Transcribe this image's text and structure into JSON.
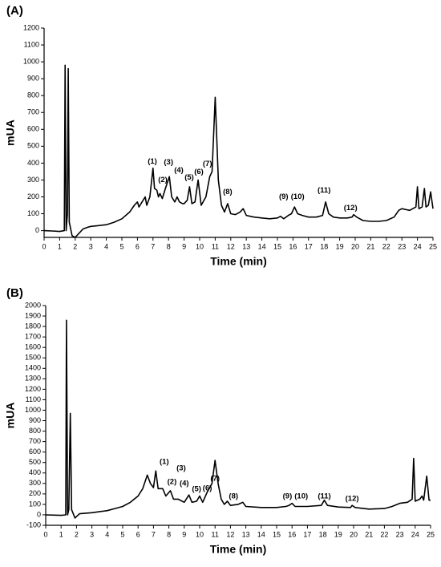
{
  "chart_data": [
    {
      "type": "line",
      "title": "(A)",
      "x_label": "Time (min)",
      "y_label": "mUA",
      "color": "#000000",
      "xlim": [
        0,
        25
      ],
      "xticks": [
        0,
        1,
        2,
        3,
        4,
        5,
        6,
        7,
        8,
        9,
        10,
        11,
        12,
        13,
        14,
        15,
        16,
        17,
        18,
        19,
        20,
        21,
        22,
        23,
        24,
        25
      ],
      "ylim": [
        -40,
        1200
      ],
      "yticks": [
        0,
        100,
        200,
        300,
        400,
        500,
        600,
        700,
        800,
        900,
        1000,
        1100,
        1200
      ],
      "x": [
        0,
        0.5,
        1.0,
        1.3,
        1.35,
        1.42,
        1.5,
        1.55,
        1.62,
        1.8,
        2.0,
        2.2,
        2.5,
        2.8,
        3.0,
        3.5,
        4.0,
        4.5,
        5.0,
        5.5,
        5.8,
        6.0,
        6.1,
        6.3,
        6.5,
        6.6,
        6.8,
        7.0,
        7.1,
        7.25,
        7.35,
        7.45,
        7.6,
        7.8,
        8.05,
        8.2,
        8.4,
        8.55,
        8.7,
        8.9,
        9.0,
        9.2,
        9.35,
        9.5,
        9.7,
        9.9,
        10.1,
        10.4,
        10.65,
        10.8,
        11.0,
        11.2,
        11.4,
        11.6,
        11.8,
        12.0,
        12.3,
        12.6,
        12.8,
        13.0,
        13.5,
        14.0,
        14.5,
        15.0,
        15.2,
        15.4,
        15.7,
        15.9,
        16.0,
        16.1,
        16.3,
        16.6,
        17.0,
        17.5,
        17.9,
        18.1,
        18.3,
        18.6,
        19.0,
        19.5,
        19.8,
        19.9,
        20.1,
        20.5,
        21.0,
        21.5,
        22.0,
        22.5,
        22.8,
        23.0,
        23.5,
        23.9,
        24.0,
        24.1,
        24.3,
        24.45,
        24.55,
        24.7,
        24.85,
        25.0
      ],
      "values": [
        0,
        -2,
        -5,
        0,
        980,
        0,
        100,
        960,
        50,
        -30,
        -40,
        -20,
        10,
        20,
        25,
        30,
        35,
        50,
        70,
        110,
        150,
        170,
        140,
        170,
        200,
        150,
        200,
        370,
        250,
        240,
        200,
        220,
        190,
        250,
        320,
        200,
        170,
        200,
        170,
        160,
        160,
        180,
        260,
        160,
        170,
        300,
        150,
        200,
        320,
        350,
        790,
        300,
        150,
        110,
        160,
        100,
        95,
        110,
        130,
        90,
        80,
        75,
        70,
        75,
        85,
        70,
        90,
        100,
        120,
        140,
        100,
        90,
        80,
        80,
        90,
        170,
        100,
        80,
        75,
        75,
        80,
        95,
        80,
        60,
        55,
        55,
        60,
        80,
        120,
        130,
        120,
        140,
        260,
        130,
        140,
        250,
        140,
        150,
        230,
        130
      ],
      "annotations": [
        {
          "text": "(1)",
          "x": 6.96,
          "y": 410
        },
        {
          "text": "(2)",
          "x": 7.63,
          "y": 300
        },
        {
          "text": "(3)",
          "x": 8.0,
          "y": 405
        },
        {
          "text": "(4)",
          "x": 8.66,
          "y": 357
        },
        {
          "text": "(5)",
          "x": 9.33,
          "y": 314
        },
        {
          "text": "(6)",
          "x": 9.95,
          "y": 348
        },
        {
          "text": "(7)",
          "x": 10.5,
          "y": 395
        },
        {
          "text": "(8)",
          "x": 11.8,
          "y": 229
        },
        {
          "text": "(9)",
          "x": 15.4,
          "y": 200
        },
        {
          "text": "(10)",
          "x": 16.3,
          "y": 200
        },
        {
          "text": "(11)",
          "x": 18.0,
          "y": 238
        },
        {
          "text": "(12)",
          "x": 19.7,
          "y": 133
        }
      ]
    },
    {
      "type": "line",
      "title": "(B)",
      "x_label": "Time (min)",
      "y_label": "mUA",
      "color": "#000000",
      "xlim": [
        0,
        25
      ],
      "xticks": [
        0,
        1,
        2,
        3,
        4,
        5,
        6,
        7,
        8,
        9,
        10,
        11,
        12,
        13,
        14,
        15,
        16,
        17,
        18,
        19,
        20,
        21,
        22,
        23,
        24,
        25
      ],
      "ylim": [
        -100,
        2000
      ],
      "yticks": [
        -100,
        0,
        100,
        200,
        300,
        400,
        500,
        600,
        700,
        800,
        900,
        1000,
        1100,
        1200,
        1300,
        1400,
        1500,
        1600,
        1700,
        1800,
        1900,
        2000
      ],
      "x": [
        0,
        1.0,
        1.3,
        1.35,
        1.42,
        1.5,
        1.6,
        1.68,
        1.9,
        2.2,
        3,
        4,
        4.5,
        5,
        5.5,
        6,
        6.3,
        6.6,
        6.8,
        7.0,
        7.15,
        7.3,
        7.6,
        7.8,
        8.1,
        8.3,
        8.6,
        9.0,
        9.3,
        9.5,
        9.8,
        10.0,
        10.2,
        10.5,
        10.8,
        11.0,
        11.2,
        11.4,
        11.6,
        11.8,
        12.0,
        12.5,
        12.8,
        13.0,
        14,
        15,
        15.6,
        15.8,
        16.0,
        16.2,
        17,
        17.9,
        18.1,
        18.3,
        19,
        19.8,
        19.9,
        20.1,
        21,
        22,
        22.5,
        23,
        23.5,
        23.8,
        23.9,
        24.0,
        24.3,
        24.45,
        24.55,
        24.75,
        24.9,
        25.0
      ],
      "values": [
        0,
        -5,
        0,
        1860,
        0,
        50,
        970,
        50,
        -30,
        10,
        20,
        40,
        60,
        80,
        120,
        180,
        250,
        380,
        300,
        260,
        420,
        250,
        250,
        180,
        230,
        150,
        150,
        120,
        190,
        120,
        130,
        180,
        120,
        220,
        300,
        520,
        300,
        150,
        100,
        130,
        90,
        100,
        120,
        80,
        70,
        70,
        80,
        90,
        110,
        80,
        80,
        90,
        140,
        90,
        75,
        70,
        90,
        70,
        55,
        60,
        80,
        110,
        120,
        150,
        540,
        130,
        150,
        180,
        140,
        370,
        140,
        140
      ],
      "annotations": [
        {
          "text": "(1)",
          "x": 7.7,
          "y": 505
        },
        {
          "text": "(2)",
          "x": 8.2,
          "y": 314
        },
        {
          "text": "(3)",
          "x": 8.8,
          "y": 444
        },
        {
          "text": "(4)",
          "x": 9.0,
          "y": 299
        },
        {
          "text": "(5)",
          "x": 9.8,
          "y": 245
        },
        {
          "text": "(6)",
          "x": 10.5,
          "y": 253
        },
        {
          "text": "(7)",
          "x": 11.0,
          "y": 345
        },
        {
          "text": "(8)",
          "x": 12.2,
          "y": 176
        },
        {
          "text": "(9)",
          "x": 15.7,
          "y": 176
        },
        {
          "text": "(10)",
          "x": 16.6,
          "y": 176
        },
        {
          "text": "(11)",
          "x": 18.1,
          "y": 176
        },
        {
          "text": "(12)",
          "x": 19.9,
          "y": 153
        }
      ]
    }
  ]
}
